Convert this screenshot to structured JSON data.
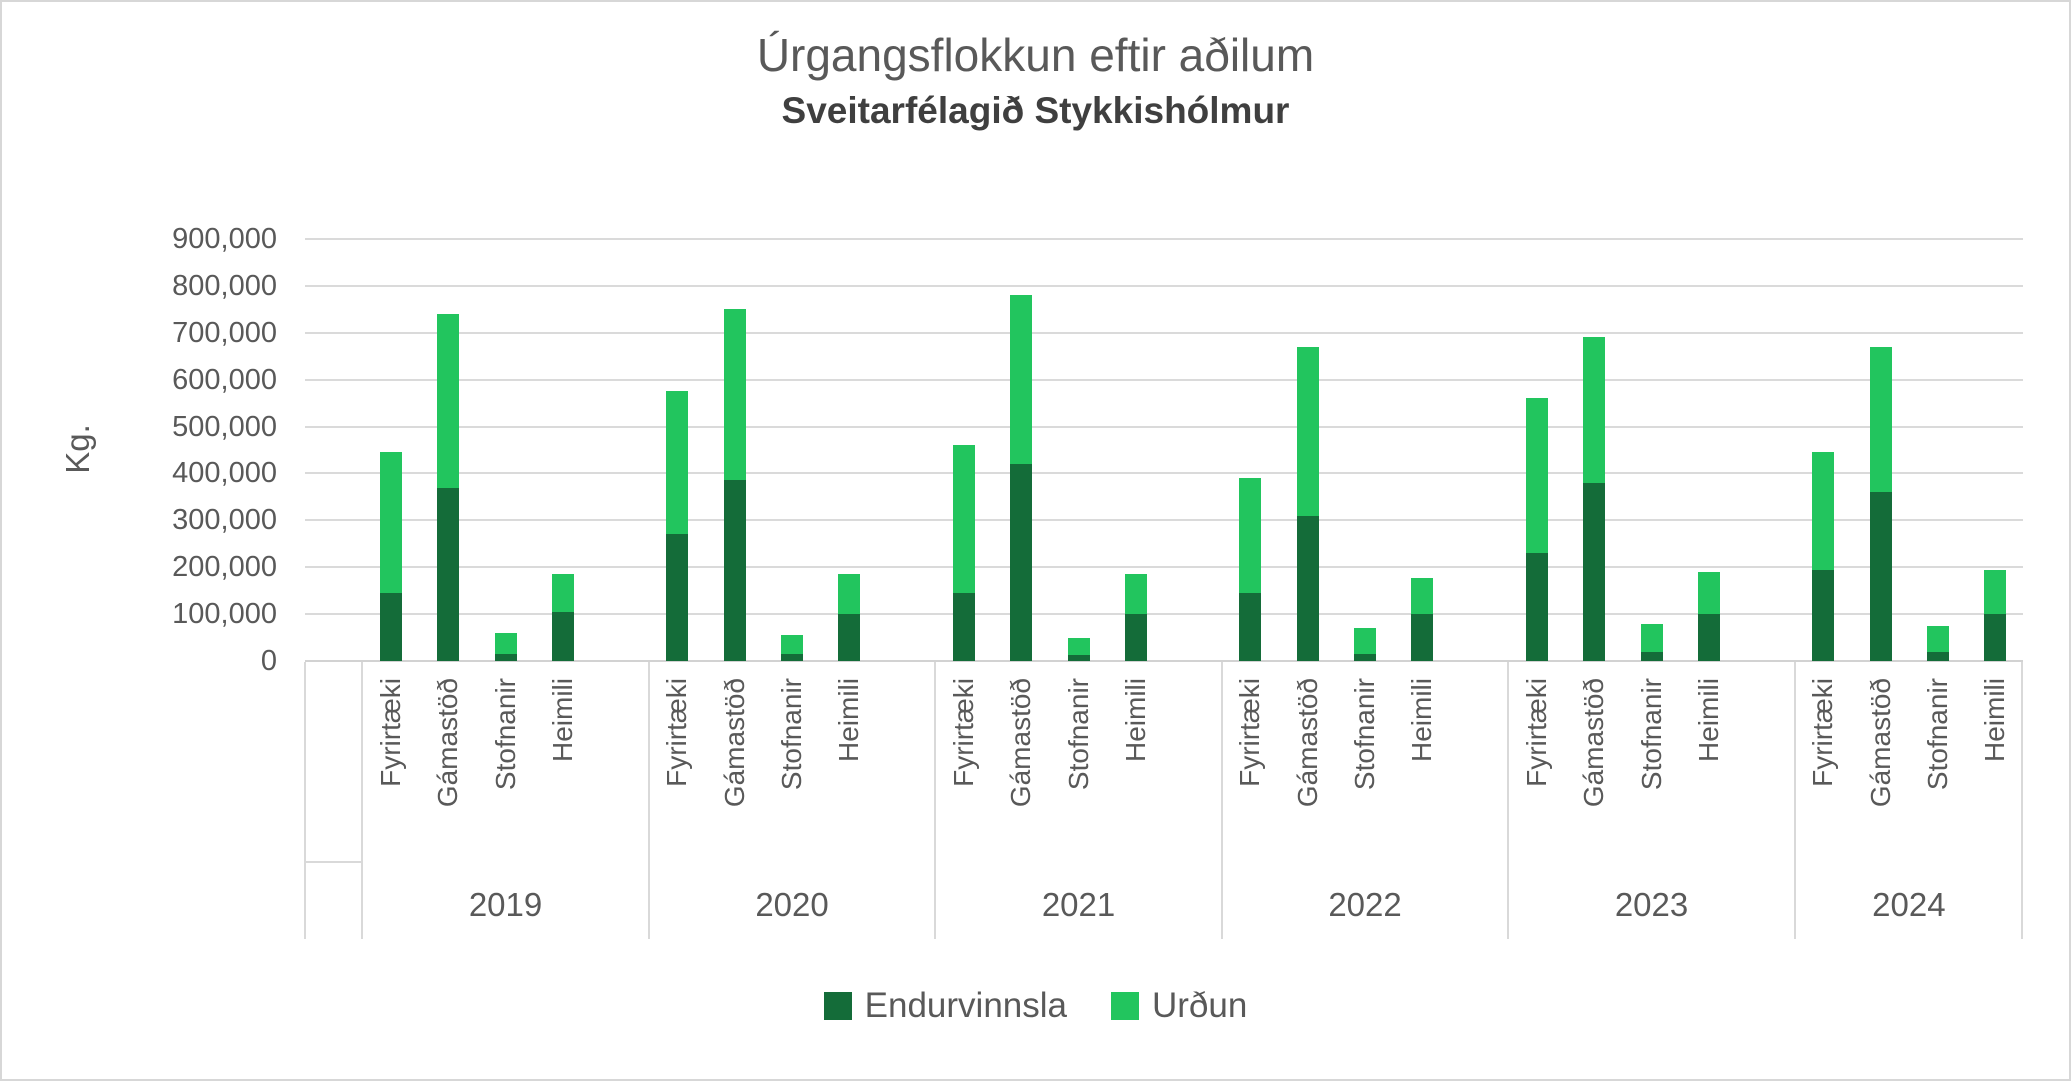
{
  "chart": {
    "title": "Úrgangsflokkun eftir aðilum",
    "subtitle": "Sveitarfélagið Stykkishólmur",
    "y_axis_title": "Kg."
  },
  "chart_data": {
    "type": "bar",
    "stacked": true,
    "title": "Úrgangsflokkun eftir aðilum",
    "subtitle": "Sveitarfélagið Stykkishólmur",
    "ylabel": "Kg.",
    "xlabel": "",
    "grid": true,
    "legend_position": "bottom",
    "ylim": [
      0,
      900000
    ],
    "y_ticks": [
      0,
      100000,
      200000,
      300000,
      400000,
      500000,
      600000,
      700000,
      800000,
      900000
    ],
    "y_tick_labels": [
      "0",
      "100,000",
      "200,000",
      "300,000",
      "400,000",
      "500,000",
      "600,000",
      "700,000",
      "800,000",
      "900,000"
    ],
    "group_categories": [
      "2019",
      "2020",
      "2021",
      "2022",
      "2023",
      "2024"
    ],
    "subcategories": [
      "Fyrirtæki",
      "Gámastöð",
      "Stofnanir",
      "Heimili"
    ],
    "series": [
      {
        "name": "Endurvinnsla",
        "color": "#146c39",
        "values": [
          [
            145000,
            370000,
            15000,
            105000
          ],
          [
            270000,
            385000,
            15000,
            100000
          ],
          [
            145000,
            420000,
            12000,
            100000
          ],
          [
            145000,
            310000,
            15000,
            100000
          ],
          [
            230000,
            380000,
            20000,
            100000
          ],
          [
            195000,
            360000,
            20000,
            100000
          ]
        ]
      },
      {
        "name": "Urðun",
        "color": "#22c55e",
        "values": [
          [
            300000,
            370000,
            45000,
            80000
          ],
          [
            305000,
            365000,
            40000,
            85000
          ],
          [
            315000,
            360000,
            38000,
            85000
          ],
          [
            245000,
            360000,
            55000,
            78000
          ],
          [
            330000,
            310000,
            58000,
            90000
          ],
          [
            250000,
            310000,
            55000,
            95000
          ]
        ]
      }
    ],
    "axis_colors": {
      "gridline": "#dadada",
      "axis_line": "#d2d2d2",
      "text": "#595959"
    }
  }
}
